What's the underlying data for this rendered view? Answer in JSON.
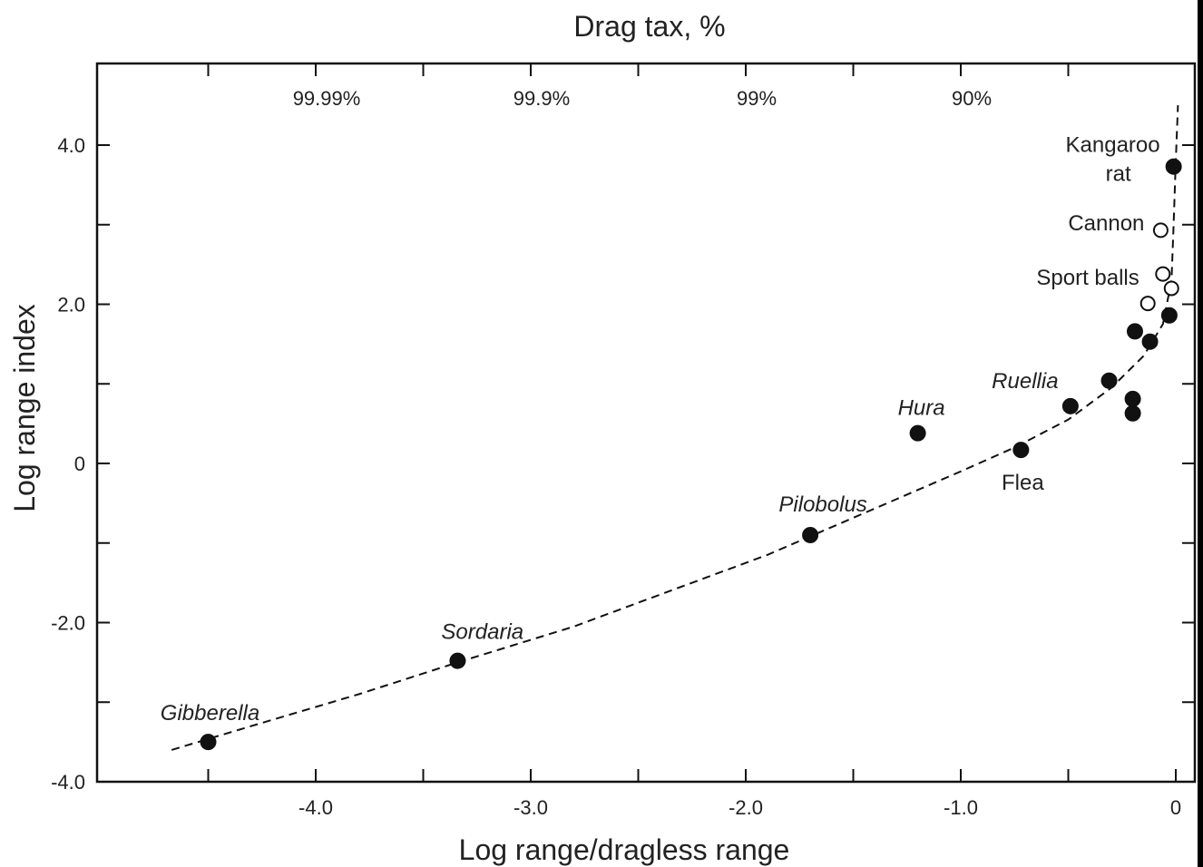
{
  "chart_data": {
    "type": "scatter",
    "title": "Drag tax, %",
    "xlabel": "Log range/dragless range",
    "ylabel": "Log range index",
    "xlim": [
      -5.0,
      0.05
    ],
    "ylim": [
      -4.0,
      5.0
    ],
    "x_ticks": [
      {
        "value": -4.0,
        "label": "-4.0"
      },
      {
        "value": -3.0,
        "label": "-3.0"
      },
      {
        "value": -2.0,
        "label": "-2.0"
      },
      {
        "value": -1.0,
        "label": "-1.0"
      },
      {
        "value": 0,
        "label": "0"
      }
    ],
    "x_minor_ticks": [
      -4.5,
      -3.5,
      -2.5,
      -1.5,
      -0.5
    ],
    "y_ticks": [
      {
        "value": 4.0,
        "label": "4.0"
      },
      {
        "value": 2.0,
        "label": "2.0"
      },
      {
        "value": 0,
        "label": "0"
      },
      {
        "value": -2.0,
        "label": "-2.0"
      },
      {
        "value": -4.0,
        "label": "-4.0"
      }
    ],
    "y_minor_ticks": [
      3.0,
      1.0,
      -1.0,
      -3.0
    ],
    "top_axis": [
      {
        "value": -4.0,
        "label": "99.99%"
      },
      {
        "value": -3.0,
        "label": "99.9%"
      },
      {
        "value": -2.0,
        "label": "99%"
      },
      {
        "value": -1.0,
        "label": "90%"
      }
    ],
    "top_minor_ticks": [
      -4.5,
      -3.5,
      -2.5,
      -1.5,
      -0.5
    ],
    "series": [
      {
        "marker": "filled",
        "points": [
          {
            "x": -4.5,
            "y": -3.5
          },
          {
            "x": -3.34,
            "y": -2.48
          },
          {
            "x": -1.7,
            "y": -0.9
          },
          {
            "x": -1.2,
            "y": 0.38
          },
          {
            "x": -0.72,
            "y": 0.17
          },
          {
            "x": -0.49,
            "y": 0.72
          },
          {
            "x": -0.31,
            "y": 1.04
          },
          {
            "x": -0.2,
            "y": 0.81
          },
          {
            "x": -0.2,
            "y": 0.63
          },
          {
            "x": -0.19,
            "y": 1.66
          },
          {
            "x": -0.12,
            "y": 1.53
          },
          {
            "x": -0.03,
            "y": 1.86
          },
          {
            "x": -0.01,
            "y": 3.73
          }
        ]
      },
      {
        "marker": "open",
        "points": [
          {
            "x": -0.07,
            "y": 2.93
          },
          {
            "x": -0.06,
            "y": 2.38
          },
          {
            "x": -0.02,
            "y": 2.2
          },
          {
            "x": -0.13,
            "y": 2.01
          }
        ]
      }
    ],
    "trend_line": {
      "style": "dashed",
      "points": [
        [
          -4.67,
          -3.6
        ],
        [
          -4.3,
          -3.3
        ],
        [
          -3.8,
          -2.9
        ],
        [
          -3.34,
          -2.5
        ],
        [
          -2.8,
          -2.05
        ],
        [
          -2.3,
          -1.55
        ],
        [
          -1.9,
          -1.15
        ],
        [
          -1.6,
          -0.8
        ],
        [
          -1.3,
          -0.45
        ],
        [
          -1.0,
          -0.1
        ],
        [
          -0.75,
          0.2
        ],
        [
          -0.5,
          0.55
        ],
        [
          -0.3,
          0.95
        ],
        [
          -0.15,
          1.35
        ],
        [
          -0.06,
          1.75
        ],
        [
          -0.02,
          2.3
        ],
        [
          -0.01,
          3.0
        ],
        [
          0.0,
          3.8
        ],
        [
          0.01,
          4.5
        ]
      ]
    },
    "annotations": [
      {
        "text": "Gibberella",
        "italic": true,
        "x": -4.5,
        "y": -3.5,
        "dx": 2,
        "dy": -24,
        "anchor": "middle",
        "leader": true
      },
      {
        "text": "Sordaria",
        "italic": true,
        "x": -3.34,
        "y": -2.48,
        "dx": -18,
        "dy": -24,
        "anchor": "start",
        "leader": true
      },
      {
        "text": "Pilobolus",
        "italic": true,
        "x": -1.7,
        "y": -0.9,
        "dx": 14,
        "dy": -26,
        "anchor": "middle",
        "leader": true
      },
      {
        "text": "Hura",
        "italic": true,
        "x": -1.2,
        "y": 0.38,
        "dx": 4,
        "dy": -20,
        "anchor": "middle",
        "leader": false
      },
      {
        "text": "Ruellia",
        "italic": true,
        "x": -0.49,
        "y": 0.72,
        "dx": -50,
        "dy": -20,
        "anchor": "middle",
        "leader": false
      },
      {
        "text": "Flea",
        "italic": false,
        "x": -0.72,
        "y": 0.17,
        "dx": 2,
        "dy": 44,
        "anchor": "middle",
        "leader": false
      },
      {
        "text": "Sport balls",
        "italic": false,
        "x": -0.06,
        "y": 2.38,
        "dx": -26,
        "dy": 12,
        "anchor": "end",
        "leader": false
      },
      {
        "text": "Cannon",
        "italic": false,
        "x": -0.07,
        "y": 2.93,
        "dx": -18,
        "dy": 0,
        "anchor": "end",
        "leader": false
      },
      {
        "text": "Kangaroo",
        "italic": false,
        "x": -0.01,
        "y": 3.73,
        "dx": -15,
        "dy": -16,
        "anchor": "end",
        "leader": false
      },
      {
        "text": "rat",
        "italic": false,
        "x": -0.01,
        "y": 3.73,
        "dx": -61,
        "dy": 16,
        "anchor": "middle",
        "leader": false
      }
    ]
  }
}
